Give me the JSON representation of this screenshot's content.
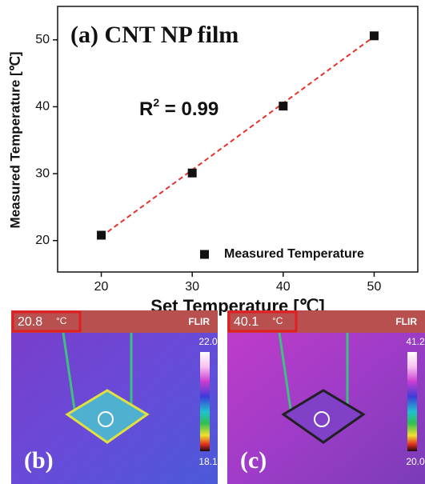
{
  "chart_data": {
    "type": "scatter",
    "title": "(a)  CNT NP film",
    "annotation": {
      "base": "R",
      "sup": "2",
      "rest": " = 0.99"
    },
    "x_label": "Set Temperature [℃]",
    "y_label": "Measured Temperature [℃]",
    "xlim": [
      15.2,
      54.8
    ],
    "ylim": [
      15.3,
      55
    ],
    "xticks": [
      20,
      30,
      40,
      50
    ],
    "yticks": [
      20,
      30,
      40,
      50
    ],
    "legend": "bottom-right",
    "series": [
      {
        "name": "Measured Temperature",
        "color": "#111111",
        "x": [
          20,
          30,
          40,
          50
        ],
        "values": [
          20.8,
          30.1,
          40.1,
          50.6
        ]
      }
    ],
    "fit": {
      "color": "#e8322b",
      "x": [
        20,
        50
      ],
      "values": [
        20.6,
        50.5
      ]
    }
  },
  "panels": [
    {
      "label": "(b)",
      "reading": "20.8",
      "unit": "°C",
      "brand": "FLIR",
      "scale_max": "22.0",
      "scale_min": "18.1"
    },
    {
      "label": "(c)",
      "reading": "40.1",
      "unit": "°C",
      "brand": "FLIR",
      "scale_max": "41.2",
      "scale_min": "20.0"
    }
  ]
}
